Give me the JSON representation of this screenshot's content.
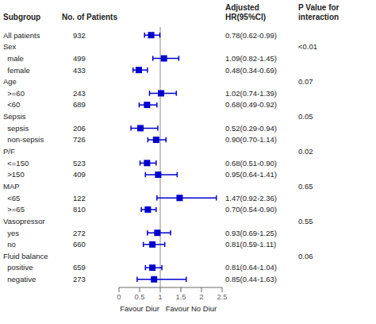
{
  "chart_data": {
    "type": "forest",
    "columns": [
      "Subgroup",
      "No. of Patients",
      "Adjusted HR(95%CI)",
      "P Value for interaction"
    ],
    "categories": [
      "All patients",
      "Sex",
      "  male",
      "  female",
      "Age",
      "  >=60",
      "  <60",
      "Sepsis",
      "  sepsis",
      "  non-sepsis",
      "P/F",
      "  <=150",
      "  >150",
      "MAP",
      "  <65",
      "  >=65",
      "Vasopressor",
      "  yes",
      "  no",
      "Fluid balance",
      "  positive",
      "  negative"
    ],
    "n": [
      932,
      null,
      499,
      433,
      null,
      243,
      689,
      null,
      206,
      726,
      null,
      523,
      409,
      null,
      122,
      810,
      null,
      272,
      660,
      null,
      659,
      273
    ],
    "values": [
      0.78,
      null,
      1.09,
      0.48,
      null,
      1.02,
      0.68,
      null,
      0.52,
      0.9,
      null,
      0.68,
      0.95,
      null,
      1.47,
      0.7,
      null,
      0.93,
      0.81,
      null,
      0.81,
      0.85
    ],
    "lower": [
      0.62,
      null,
      0.82,
      0.34,
      null,
      0.74,
      0.49,
      null,
      0.29,
      0.7,
      null,
      0.51,
      0.64,
      null,
      0.92,
      0.54,
      null,
      0.69,
      0.59,
      null,
      0.64,
      0.44
    ],
    "upper": [
      0.99,
      null,
      1.45,
      0.69,
      null,
      1.39,
      0.92,
      null,
      0.94,
      1.14,
      null,
      0.9,
      1.41,
      null,
      2.36,
      0.9,
      null,
      1.25,
      1.11,
      null,
      1.04,
      1.63
    ],
    "value_labels": [
      "0.78(0.62-0.99)",
      null,
      "1.09(0.82-1.45)",
      "0.48(0.34-0.69)",
      null,
      "1.02(0.74-1.39)",
      "0.68(0.49-0.92)",
      null,
      "0.52(0.29-0.94)",
      "0.90(0.70-1.14)",
      null,
      "0.68(0.51-0.90)",
      "0.95(0.64-1.41)",
      null,
      "1.47(0.92-2.36)",
      "0.70(0.54-0.90)",
      null,
      "0.93(0.69-1.25)",
      "0.81(0.59-1.11)",
      null,
      "0.81(0.64-1.04)",
      "0.85(0.44-1.63)"
    ],
    "p_values": [
      null,
      "<0.01",
      null,
      null,
      "0.07",
      null,
      null,
      "0.05",
      null,
      null,
      "0.02",
      null,
      null,
      "0.65",
      null,
      null,
      "0.55",
      null,
      null,
      "0.06",
      null,
      null
    ],
    "xlim": [
      0.0,
      2.5
    ],
    "xticks": [
      0,
      0.5,
      1,
      1.5,
      2,
      2.5
    ],
    "reference_line": 1.0,
    "color": "#0000cd",
    "annotations": [
      {
        "x": 0.5,
        "text": "Favour Diur"
      },
      {
        "x": 1.75,
        "text": "Favour No Diur"
      }
    ]
  }
}
